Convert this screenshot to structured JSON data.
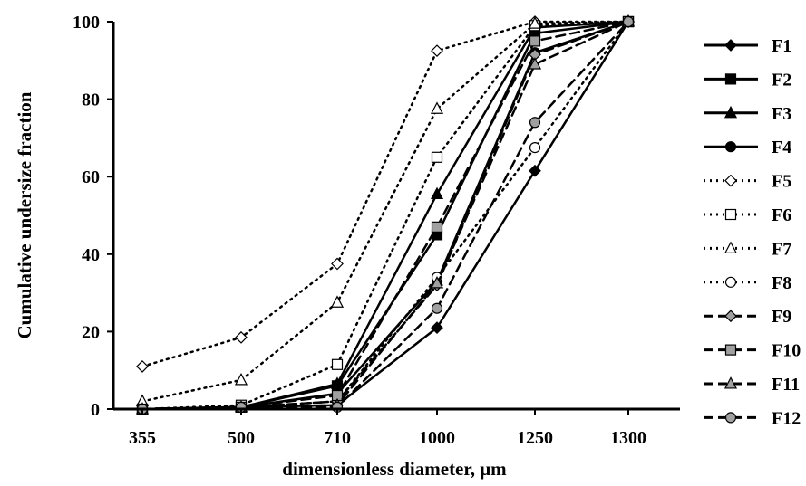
{
  "chart_data": {
    "type": "line",
    "xlabel": "dimensionless diameter, μm",
    "ylabel": "Cumulative undersize fraction",
    "categories": [
      "355",
      "500",
      "710",
      "1000",
      "1250",
      "1300"
    ],
    "ylim": [
      0,
      100
    ],
    "yticks": [
      "0",
      "20",
      "40",
      "60",
      "80",
      "100"
    ],
    "grid": false,
    "legend_position": "right",
    "series": [
      {
        "name": "F1",
        "style": "solid",
        "marker": "diamond",
        "fill": "#000000",
        "values": [
          0,
          0.5,
          1,
          21,
          61.5,
          100
        ]
      },
      {
        "name": "F2",
        "style": "solid",
        "marker": "square",
        "fill": "#000000",
        "values": [
          0,
          0.5,
          6,
          45,
          97,
          100
        ]
      },
      {
        "name": "F3",
        "style": "solid",
        "marker": "triangle",
        "fill": "#000000",
        "values": [
          0,
          0.5,
          6.5,
          55.5,
          98.5,
          100
        ]
      },
      {
        "name": "F4",
        "style": "solid",
        "marker": "circle",
        "fill": "#000000",
        "values": [
          0,
          0.5,
          4,
          33,
          92,
          100
        ]
      },
      {
        "name": "F5",
        "style": "dotted",
        "marker": "diamond",
        "fill": "#ffffff",
        "values": [
          11,
          18.5,
          37.5,
          92.5,
          100,
          100
        ]
      },
      {
        "name": "F6",
        "style": "dotted",
        "marker": "square",
        "fill": "#ffffff",
        "values": [
          0,
          1,
          11.5,
          65,
          99,
          100
        ]
      },
      {
        "name": "F7",
        "style": "dotted",
        "marker": "triangle",
        "fill": "#ffffff",
        "values": [
          2,
          7.5,
          27.5,
          77.5,
          99.5,
          100
        ]
      },
      {
        "name": "F8",
        "style": "dotted",
        "marker": "circle",
        "fill": "#ffffff",
        "values": [
          0,
          0.5,
          2,
          34,
          67.5,
          100
        ]
      },
      {
        "name": "F9",
        "style": "dashed",
        "marker": "diamond",
        "fill": "#a0a0a0",
        "values": [
          0,
          0.5,
          2,
          32,
          91.5,
          100
        ]
      },
      {
        "name": "F10",
        "style": "dashed",
        "marker": "square",
        "fill": "#a0a0a0",
        "values": [
          0,
          0.5,
          3.5,
          47,
          95,
          100
        ]
      },
      {
        "name": "F11",
        "style": "dashed",
        "marker": "triangle",
        "fill": "#a0a0a0",
        "values": [
          0,
          0.5,
          1,
          32.5,
          89,
          100
        ]
      },
      {
        "name": "F12",
        "style": "dashed",
        "marker": "circle",
        "fill": "#a0a0a0",
        "values": [
          0,
          0.5,
          0.5,
          26,
          74,
          100
        ]
      }
    ]
  }
}
